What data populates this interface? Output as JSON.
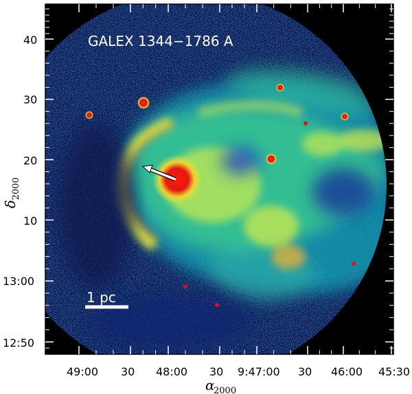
{
  "figure": {
    "title": "GALEX 1344−1786 A",
    "scalebar_label": "1 pc",
    "x_axis": {
      "symbol": "α",
      "subscript": "2000",
      "tick_labels": [
        "49:00",
        "30",
        "48:00",
        "30",
        "9:47:00",
        "30",
        "46:00",
        "45:30"
      ]
    },
    "y_axis": {
      "symbol": "δ",
      "subscript": "2000",
      "tick_labels": [
        "40",
        "30",
        "20",
        "10",
        "13:00",
        "12:50"
      ]
    },
    "colors": {
      "background": "#000000",
      "low": "#1a3fd0",
      "mid_low": "#0fb3b8",
      "mid": "#46d48c",
      "mid_high": "#d8ee4a",
      "high": "#e01010",
      "arrow": "#ffffff"
    }
  }
}
